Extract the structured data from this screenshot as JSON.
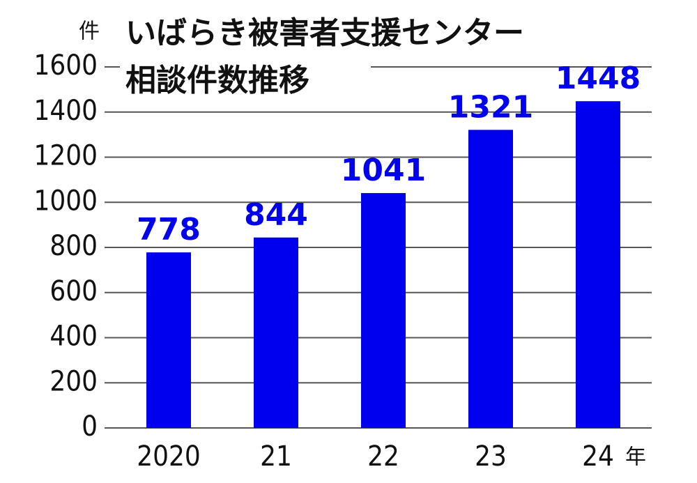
{
  "chart_data": {
    "type": "bar",
    "title": "いばらき被害者支援センター",
    "subtitle": "相談件数推移",
    "y_label": "件",
    "x_label": "年",
    "categories": [
      "2020",
      "21",
      "22",
      "23",
      "24"
    ],
    "values": [
      778,
      844,
      1041,
      1321,
      1448
    ],
    "color": "#0000ee",
    "ylim": [
      0,
      1600
    ],
    "yticks": [
      0,
      200,
      400,
      600,
      800,
      1000,
      1200,
      1400,
      1600
    ],
    "grid": true
  }
}
